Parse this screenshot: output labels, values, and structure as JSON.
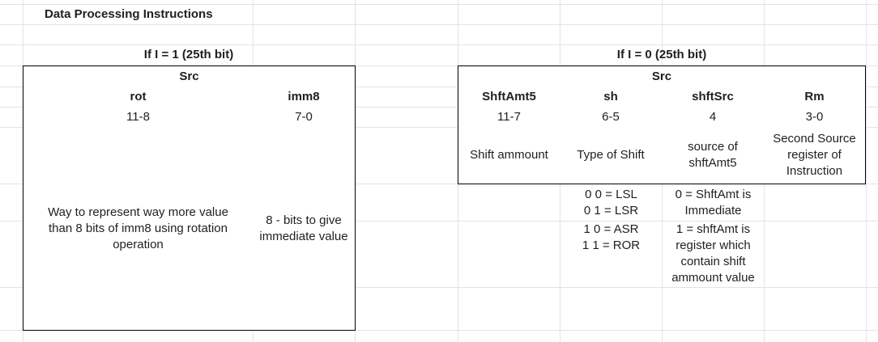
{
  "sheet": {
    "title": "Data Processing Instructions"
  },
  "left_table": {
    "heading": "If I = 1 (25th bit)",
    "group_header": "Src",
    "columns": [
      {
        "name": "rot",
        "bits": "11-8",
        "description": "Way to represent way more value than 8 bits of imm8 using rotation operation"
      },
      {
        "name": "imm8",
        "bits": "7-0",
        "description": "8 - bits to give immediate value"
      }
    ]
  },
  "right_table": {
    "heading": "If I = 0 (25th bit)",
    "group_header": "Src",
    "columns": [
      {
        "name": "ShftAmt5",
        "bits": "11-7",
        "description": "Shift ammount"
      },
      {
        "name": "sh",
        "bits": "6-5",
        "description": "Type of Shift"
      },
      {
        "name": "shftSrc",
        "bits": "4",
        "description": "source of shftAmt5"
      },
      {
        "name": "Rm",
        "bits": "3-0",
        "description": "Second Source register of Instruction"
      }
    ],
    "sh_values": [
      "0 0 = LSL",
      "0 1 = LSR",
      "1 0 = ASR",
      "1 1 = ROR"
    ],
    "shftsrc_values": [
      "0 = ShftAmt is Immediate",
      "1 = shftAmt is register which contain shift ammount value"
    ]
  }
}
